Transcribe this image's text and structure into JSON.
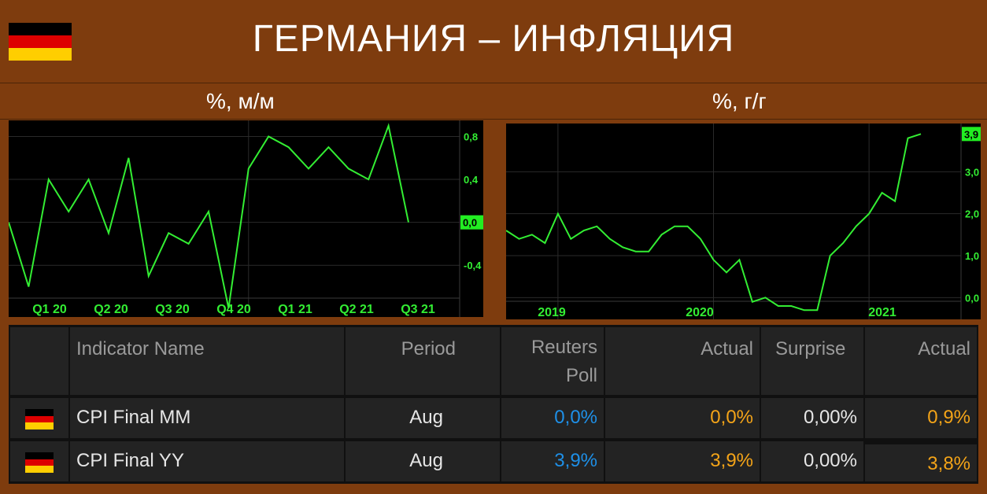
{
  "header": {
    "title": "ГЕРМАНИЯ – ИНФЛЯЦИЯ"
  },
  "flag_colors": {
    "black": "#000000",
    "red": "#dd0000",
    "gold": "#ffce00"
  },
  "colors": {
    "background": "#7e3c0e",
    "line": "#33ee33",
    "axis_text": "#33ee33",
    "poll": "#1e90e8",
    "actual": "#f4a418"
  },
  "chart_data": [
    {
      "type": "line",
      "title": "%, м/м",
      "x_ticks": [
        "Q1 20",
        "Q2 20",
        "Q3 20",
        "Q4 20",
        "Q1 21",
        "Q2 21",
        "Q3 21"
      ],
      "y_ticks": [
        "0,8",
        "0,4",
        "0,0",
        "-0,4"
      ],
      "current_value_label": "0,0",
      "ylim": [
        -0.75,
        0.95
      ],
      "x": [
        "2019-12",
        "2020-01",
        "2020-02",
        "2020-03",
        "2020-04",
        "2020-05",
        "2020-06",
        "2020-07",
        "2020-08",
        "2020-09",
        "2020-10",
        "2020-11",
        "2020-12",
        "2021-01",
        "2021-02",
        "2021-03",
        "2021-04",
        "2021-05",
        "2021-06",
        "2021-07",
        "2021-08"
      ],
      "values": [
        0.0,
        -0.6,
        0.4,
        0.1,
        0.4,
        -0.1,
        0.6,
        -0.5,
        -0.1,
        -0.2,
        0.1,
        -0.8,
        0.5,
        0.8,
        0.7,
        0.5,
        0.7,
        0.5,
        0.4,
        0.9,
        0.0
      ],
      "series": [
        {
          "values": [
            0.0,
            -0.6,
            0.4,
            0.1,
            0.4,
            -0.1,
            0.6,
            -0.5,
            -0.1,
            -0.2,
            0.1,
            -0.8,
            0.5,
            0.8,
            0.7,
            0.5,
            0.7,
            0.5,
            0.4,
            0.9,
            0.0
          ]
        }
      ]
    },
    {
      "type": "line",
      "title": "%, г/г",
      "x_ticks": [
        "2019",
        "2020",
        "2021"
      ],
      "y_ticks": [
        "3,0",
        "2,0",
        "1,0",
        "0,0"
      ],
      "current_value_label": "3,9",
      "ylim": [
        -0.35,
        4.15
      ],
      "x": [
        "2018-12",
        "2019-01",
        "2019-02",
        "2019-03",
        "2019-04",
        "2019-05",
        "2019-06",
        "2019-07",
        "2019-08",
        "2019-09",
        "2019-10",
        "2019-11",
        "2019-12",
        "2020-01",
        "2020-02",
        "2020-03",
        "2020-04",
        "2020-05",
        "2020-06",
        "2020-07",
        "2020-08",
        "2020-09",
        "2020-10",
        "2020-11",
        "2020-12",
        "2021-01",
        "2021-02",
        "2021-03",
        "2021-04",
        "2021-05",
        "2021-06",
        "2021-07",
        "2021-08"
      ],
      "values": [
        1.6,
        1.4,
        1.5,
        1.3,
        2.0,
        1.4,
        1.6,
        1.7,
        1.4,
        1.2,
        1.1,
        1.1,
        1.5,
        1.7,
        1.7,
        1.4,
        0.9,
        0.6,
        0.9,
        -0.1,
        0.0,
        -0.2,
        -0.2,
        -0.3,
        -0.3,
        1.0,
        1.3,
        1.7,
        2.0,
        2.5,
        2.3,
        3.8,
        3.9
      ],
      "series": [
        {
          "values": [
            1.6,
            1.4,
            1.5,
            1.3,
            2.0,
            1.4,
            1.6,
            1.7,
            1.4,
            1.2,
            1.1,
            1.1,
            1.5,
            1.7,
            1.7,
            1.4,
            0.9,
            0.6,
            0.9,
            -0.1,
            0.0,
            -0.2,
            -0.2,
            -0.3,
            -0.3,
            1.0,
            1.3,
            1.7,
            2.0,
            2.5,
            2.3,
            3.8,
            3.9
          ]
        }
      ]
    },
    {
      "type": "table",
      "columns": [
        "",
        "Indicator Name",
        "Period",
        "Reuters Poll",
        "Actual",
        "Surprise",
        "Actual"
      ],
      "rows": [
        [
          "",
          "CPI Final MM",
          "Aug",
          "0,0%",
          "0,0%",
          "0,00%",
          "0,9%"
        ],
        [
          "",
          "CPI Final YY",
          "Aug",
          "3,9%",
          "3,9%",
          "0,00%",
          "3,8%"
        ]
      ]
    }
  ],
  "table": {
    "headers": {
      "name": "Indicator Name",
      "period": "Period",
      "poll_line1": "Reuters",
      "poll_line2": "Poll",
      "actual": "Actual",
      "surprise": "Surprise",
      "actual_prev": "Actual"
    },
    "rows": [
      {
        "name": "CPI Final MM",
        "period": "Aug",
        "poll": "0,0%",
        "actual": "0,0%",
        "surprise": "0,00%",
        "actual_prev": "0,9%"
      },
      {
        "name": "CPI Final YY",
        "period": "Aug",
        "poll": "3,9%",
        "actual": "3,9%",
        "surprise": "0,00%",
        "actual_prev": "3,8%"
      }
    ]
  }
}
